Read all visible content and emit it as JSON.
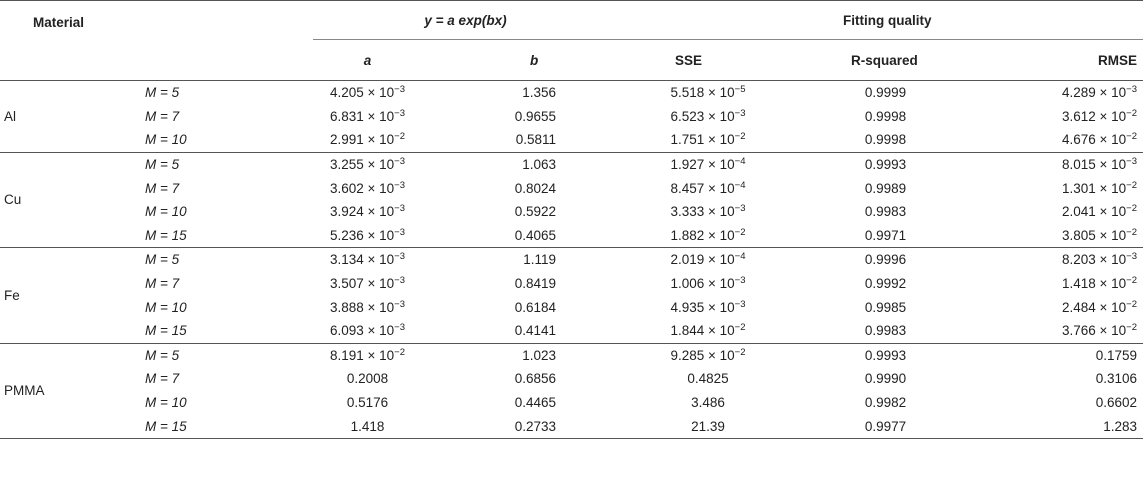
{
  "header": {
    "material": "Material",
    "model_prefix": "y = a exp(",
    "model_bx": "bx",
    "model_suffix": ")",
    "fitting_quality": "Fitting quality",
    "col_a": "a",
    "col_b": "b",
    "col_sse": "SSE",
    "col_rsq": "R-squared",
    "col_rmse": "RMSE"
  },
  "groups": [
    {
      "material": "Al",
      "rows": [
        {
          "m": "M = 5",
          "a": {
            "m": "4.205 × 10",
            "e": "−3"
          },
          "b": "1.356",
          "sse": {
            "m": "5.518 × 10",
            "e": "−5"
          },
          "rsq": "0.9999",
          "rmse": {
            "m": "4.289 × 10",
            "e": "−3"
          }
        },
        {
          "m": "M = 7",
          "a": {
            "m": "6.831 × 10",
            "e": "−3"
          },
          "b": "0.9655",
          "sse": {
            "m": "6.523 × 10",
            "e": "−3"
          },
          "rsq": "0.9998",
          "rmse": {
            "m": "3.612 × 10",
            "e": "−2"
          }
        },
        {
          "m": "M = 10",
          "a": {
            "m": "2.991 × 10",
            "e": "−2"
          },
          "b": "0.5811",
          "sse": {
            "m": "1.751 × 10",
            "e": "−2"
          },
          "rsq": "0.9998",
          "rmse": {
            "m": "4.676 × 10",
            "e": "−2"
          }
        }
      ]
    },
    {
      "material": "Cu",
      "rows": [
        {
          "m": "M = 5",
          "a": {
            "m": "3.255 × 10",
            "e": "−3"
          },
          "b": "1.063",
          "sse": {
            "m": "1.927 × 10",
            "e": "−4"
          },
          "rsq": "0.9993",
          "rmse": {
            "m": "8.015 × 10",
            "e": "−3"
          }
        },
        {
          "m": "M = 7",
          "a": {
            "m": "3.602 × 10",
            "e": "−3"
          },
          "b": "0.8024",
          "sse": {
            "m": "8.457 × 10",
            "e": "−4"
          },
          "rsq": "0.9989",
          "rmse": {
            "m": "1.301 × 10",
            "e": "−2"
          }
        },
        {
          "m": "M = 10",
          "a": {
            "m": "3.924 × 10",
            "e": "−3"
          },
          "b": "0.5922",
          "sse": {
            "m": "3.333 × 10",
            "e": "−3"
          },
          "rsq": "0.9983",
          "rmse": {
            "m": "2.041 × 10",
            "e": "−2"
          }
        },
        {
          "m": "M = 15",
          "a": {
            "m": "5.236 × 10",
            "e": "−3"
          },
          "b": "0.4065",
          "sse": {
            "m": "1.882 × 10",
            "e": "−2"
          },
          "rsq": "0.9971",
          "rmse": {
            "m": "3.805 × 10",
            "e": "−2"
          }
        }
      ]
    },
    {
      "material": "Fe",
      "rows": [
        {
          "m": "M = 5",
          "a": {
            "m": "3.134 × 10",
            "e": "−3"
          },
          "b": "1.119",
          "sse": {
            "m": "2.019 × 10",
            "e": "−4"
          },
          "rsq": "0.9996",
          "rmse": {
            "m": "8.203 × 10",
            "e": "−3"
          }
        },
        {
          "m": "M = 7",
          "a": {
            "m": "3.507 × 10",
            "e": "−3"
          },
          "b": "0.8419",
          "sse": {
            "m": "1.006 × 10",
            "e": "−3"
          },
          "rsq": "0.9992",
          "rmse": {
            "m": "1.418 × 10",
            "e": "−2"
          }
        },
        {
          "m": "M = 10",
          "a": {
            "m": "3.888 × 10",
            "e": "−3"
          },
          "b": "0.6184",
          "sse": {
            "m": "4.935 × 10",
            "e": "−3"
          },
          "rsq": "0.9985",
          "rmse": {
            "m": "2.484 × 10",
            "e": "−2"
          }
        },
        {
          "m": "M = 15",
          "a": {
            "m": "6.093 × 10",
            "e": "−3"
          },
          "b": "0.4141",
          "sse": {
            "m": "1.844 × 10",
            "e": "−2"
          },
          "rsq": "0.9983",
          "rmse": {
            "m": "3.766 × 10",
            "e": "−2"
          }
        }
      ]
    },
    {
      "material": "PMMA",
      "rows": [
        {
          "m": "M = 5",
          "a": {
            "m": "8.191 × 10",
            "e": "−2"
          },
          "b": "1.023",
          "sse": {
            "m": "9.285 × 10",
            "e": "−2"
          },
          "rsq": "0.9993",
          "rmse": {
            "m": "0.1759",
            "e": ""
          }
        },
        {
          "m": "M = 7",
          "a": {
            "m": "0.2008",
            "e": ""
          },
          "b": "0.6856",
          "sse": {
            "m": "0.4825",
            "e": ""
          },
          "rsq": "0.9990",
          "rmse": {
            "m": "0.3106",
            "e": ""
          }
        },
        {
          "m": "M = 10",
          "a": {
            "m": "0.5176",
            "e": ""
          },
          "b": "0.4465",
          "sse": {
            "m": "3.486",
            "e": ""
          },
          "rsq": "0.9982",
          "rmse": {
            "m": "0.6602",
            "e": ""
          }
        },
        {
          "m": "M = 15",
          "a": {
            "m": "1.418",
            "e": ""
          },
          "b": "0.2733",
          "sse": {
            "m": "21.39",
            "e": ""
          },
          "rsq": "0.9977",
          "rmse": {
            "m": "1.283",
            "e": ""
          }
        }
      ]
    }
  ]
}
